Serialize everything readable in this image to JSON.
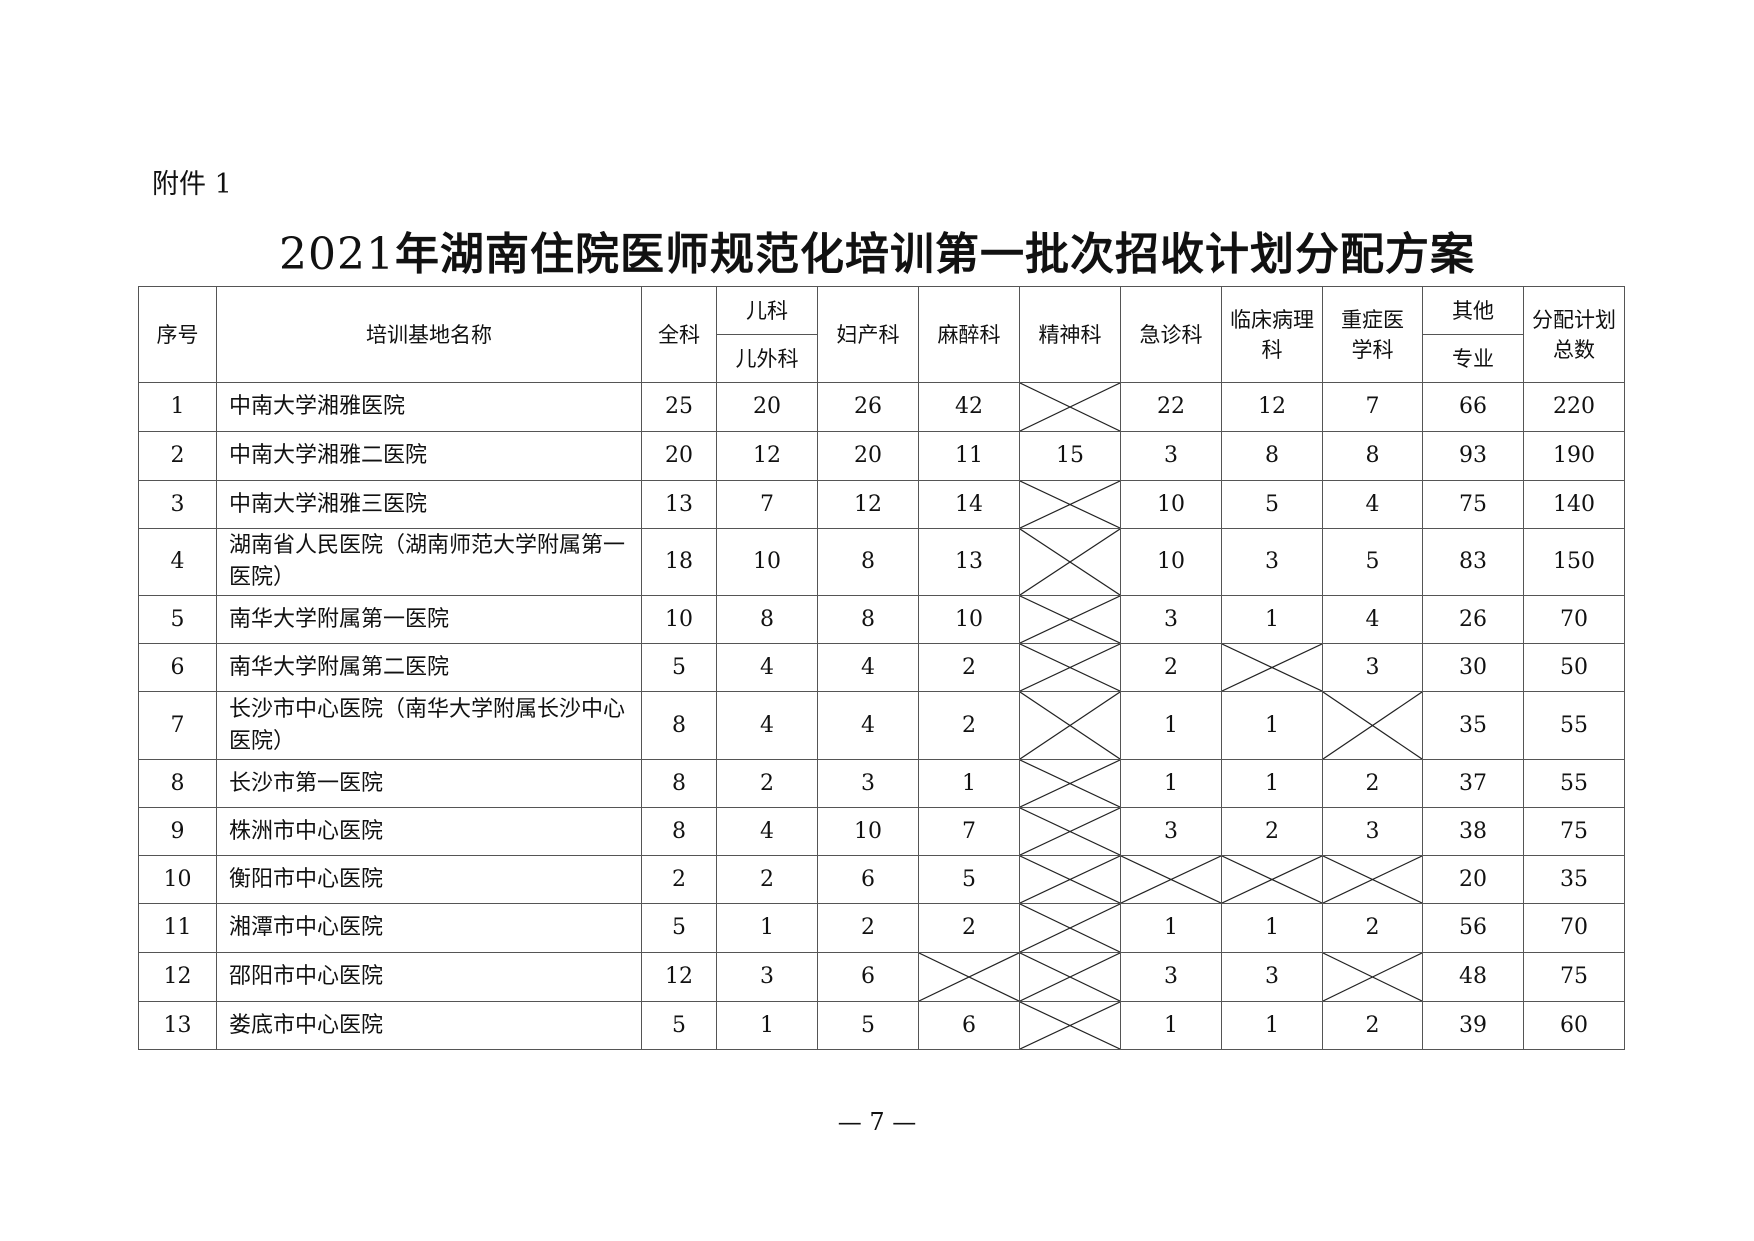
{
  "attachment_label": "附件 1",
  "title_year": "2021",
  "title_text": "年湖南住院医师规范化培训第一批次招收计划分配方案",
  "headers": {
    "index": "序号",
    "name": "培训基地名称",
    "general": "全科",
    "pediatrics": "儿科",
    "pediatric_surgery": "儿外科",
    "obgyn": "妇产科",
    "anesthesia": "麻醉科",
    "psychiatry": "精神科",
    "emergency": "急诊科",
    "pathology": "临床病理科",
    "critical_care": "重症医学科",
    "other": "其他",
    "other_sub": "专业",
    "total": "分配计划总数"
  },
  "columns": [
    "general",
    "pediatrics",
    "obgyn",
    "anesthesia",
    "psychiatry",
    "emergency",
    "pathology",
    "critical_care",
    "other",
    "total"
  ],
  "crossed_mark": "x-cross",
  "rows": [
    {
      "index": "1",
      "name": "中南大学湘雅医院",
      "values": [
        "25",
        "20",
        "26",
        "42",
        null,
        "22",
        "12",
        "7",
        "66",
        "220"
      ]
    },
    {
      "index": "2",
      "name": "中南大学湘雅二医院",
      "values": [
        "20",
        "12",
        "20",
        "11",
        "15",
        "3",
        "8",
        "8",
        "93",
        "190"
      ]
    },
    {
      "index": "3",
      "name": "中南大学湘雅三医院",
      "values": [
        "13",
        "7",
        "12",
        "14",
        null,
        "10",
        "5",
        "4",
        "75",
        "140"
      ]
    },
    {
      "index": "4",
      "name": "湖南省人民医院（湖南师范大学附属第一医院）",
      "values": [
        "18",
        "10",
        "8",
        "13",
        null,
        "10",
        "3",
        "5",
        "83",
        "150"
      ]
    },
    {
      "index": "5",
      "name": "南华大学附属第一医院",
      "values": [
        "10",
        "8",
        "8",
        "10",
        null,
        "3",
        "1",
        "4",
        "26",
        "70"
      ]
    },
    {
      "index": "6",
      "name": "南华大学附属第二医院",
      "values": [
        "5",
        "4",
        "4",
        "2",
        null,
        "2",
        null,
        "3",
        "30",
        "50"
      ]
    },
    {
      "index": "7",
      "name": "长沙市中心医院（南华大学附属长沙中心医院）",
      "values": [
        "8",
        "4",
        "4",
        "2",
        null,
        "1",
        "1",
        null,
        "35",
        "55"
      ]
    },
    {
      "index": "8",
      "name": "长沙市第一医院",
      "values": [
        "8",
        "2",
        "3",
        "1",
        null,
        "1",
        "1",
        "2",
        "37",
        "55"
      ]
    },
    {
      "index": "9",
      "name": "株洲市中心医院",
      "values": [
        "8",
        "4",
        "10",
        "7",
        null,
        "3",
        "2",
        "3",
        "38",
        "75"
      ]
    },
    {
      "index": "10",
      "name": "衡阳市中心医院",
      "values": [
        "2",
        "2",
        "6",
        "5",
        null,
        null,
        null,
        null,
        "20",
        "35"
      ]
    },
    {
      "index": "11",
      "name": "湘潭市中心医院",
      "values": [
        "5",
        "1",
        "2",
        "2",
        null,
        "1",
        "1",
        "2",
        "56",
        "70"
      ]
    },
    {
      "index": "12",
      "name": "邵阳市中心医院",
      "values": [
        "12",
        "3",
        "6",
        null,
        null,
        "3",
        "3",
        null,
        "48",
        "75"
      ]
    },
    {
      "index": "13",
      "name": "娄底市中心医院",
      "values": [
        "5",
        "1",
        "5",
        "6",
        null,
        "1",
        "1",
        "2",
        "39",
        "60"
      ]
    }
  ],
  "page_number": "— 7 —"
}
